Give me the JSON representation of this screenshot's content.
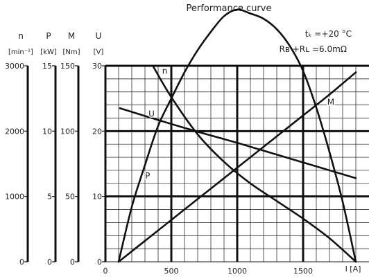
{
  "chart_data": {
    "type": "line",
    "title": "Performance curve",
    "conditions": {
      "tk": "tₖ =+20  °C",
      "r": "Rʙ +Rʟ =6.0mΩ"
    },
    "x_axis": {
      "label": "I [A]",
      "range": [
        0,
        2000
      ],
      "ticks": [
        0,
        500,
        1000,
        1500
      ],
      "tick_labels": [
        "0",
        "500",
        "1000",
        "1500"
      ]
    },
    "y_axes": [
      {
        "symbol": "n",
        "unit": "[min⁻¹]",
        "range": [
          0,
          3000
        ],
        "ticks": [
          0,
          1000,
          2000,
          3000
        ],
        "tick_labels": [
          "0",
          "1000",
          "2000",
          "3000"
        ]
      },
      {
        "symbol": "P",
        "unit": "[kW]",
        "range": [
          0,
          15
        ],
        "ticks": [
          0,
          5,
          10,
          15
        ],
        "tick_labels": [
          "0",
          "5",
          "10",
          "15"
        ]
      },
      {
        "symbol": "M",
        "unit": "[Nm]",
        "range": [
          0,
          150
        ],
        "ticks": [
          0,
          50,
          100,
          150
        ],
        "tick_labels": [
          "0",
          "50",
          "100",
          "150"
        ]
      },
      {
        "symbol": "U",
        "unit": "[V]",
        "range": [
          0,
          30
        ],
        "ticks": [
          0,
          10,
          20,
          30
        ],
        "tick_labels": [
          "0",
          "10",
          "20",
          "30"
        ]
      }
    ],
    "grid": true,
    "series": [
      {
        "name": "n",
        "axis": "n",
        "x": [
          360,
          500,
          700,
          900,
          1100,
          1300,
          1500,
          1700,
          1900
        ],
        "y": [
          3000,
          2520,
          1950,
          1530,
          1200,
          930,
          660,
          360,
          0
        ]
      },
      {
        "name": "U",
        "axis": "U",
        "x": [
          110,
          400,
          700,
          1000,
          1300,
          1600,
          1900
        ],
        "y": [
          23.5,
          21.7,
          19.9,
          18.2,
          16.4,
          14.6,
          12.8
        ]
      },
      {
        "name": "M",
        "axis": "M",
        "x": [
          100,
          300,
          500,
          700,
          900,
          1100,
          1300,
          1500,
          1700,
          1900
        ],
        "y": [
          0,
          16,
          32,
          48,
          64,
          80,
          96,
          112,
          128,
          145
        ]
      },
      {
        "name": "P",
        "axis": "P",
        "x": [
          100,
          200,
          300,
          400,
          500,
          600,
          700,
          800,
          900,
          1000,
          1100,
          1200,
          1300,
          1400,
          1500,
          1600,
          1700,
          1800,
          1900
        ],
        "y": [
          0,
          4.2,
          7.4,
          10.4,
          12.5,
          14.5,
          16.2,
          17.6,
          18.8,
          19.3,
          19.0,
          18.6,
          17.8,
          16.5,
          14.6,
          11.8,
          8.4,
          4.6,
          0
        ]
      }
    ],
    "curve_labels": [
      {
        "text": "n",
        "x": 450,
        "y_U": 28.8
      },
      {
        "text": "U",
        "x": 350,
        "y_U": 22.2
      },
      {
        "text": "M",
        "x": 1710,
        "y_U": 24.0
      },
      {
        "text": "P",
        "x": 320,
        "y_U": 12.7
      }
    ]
  }
}
